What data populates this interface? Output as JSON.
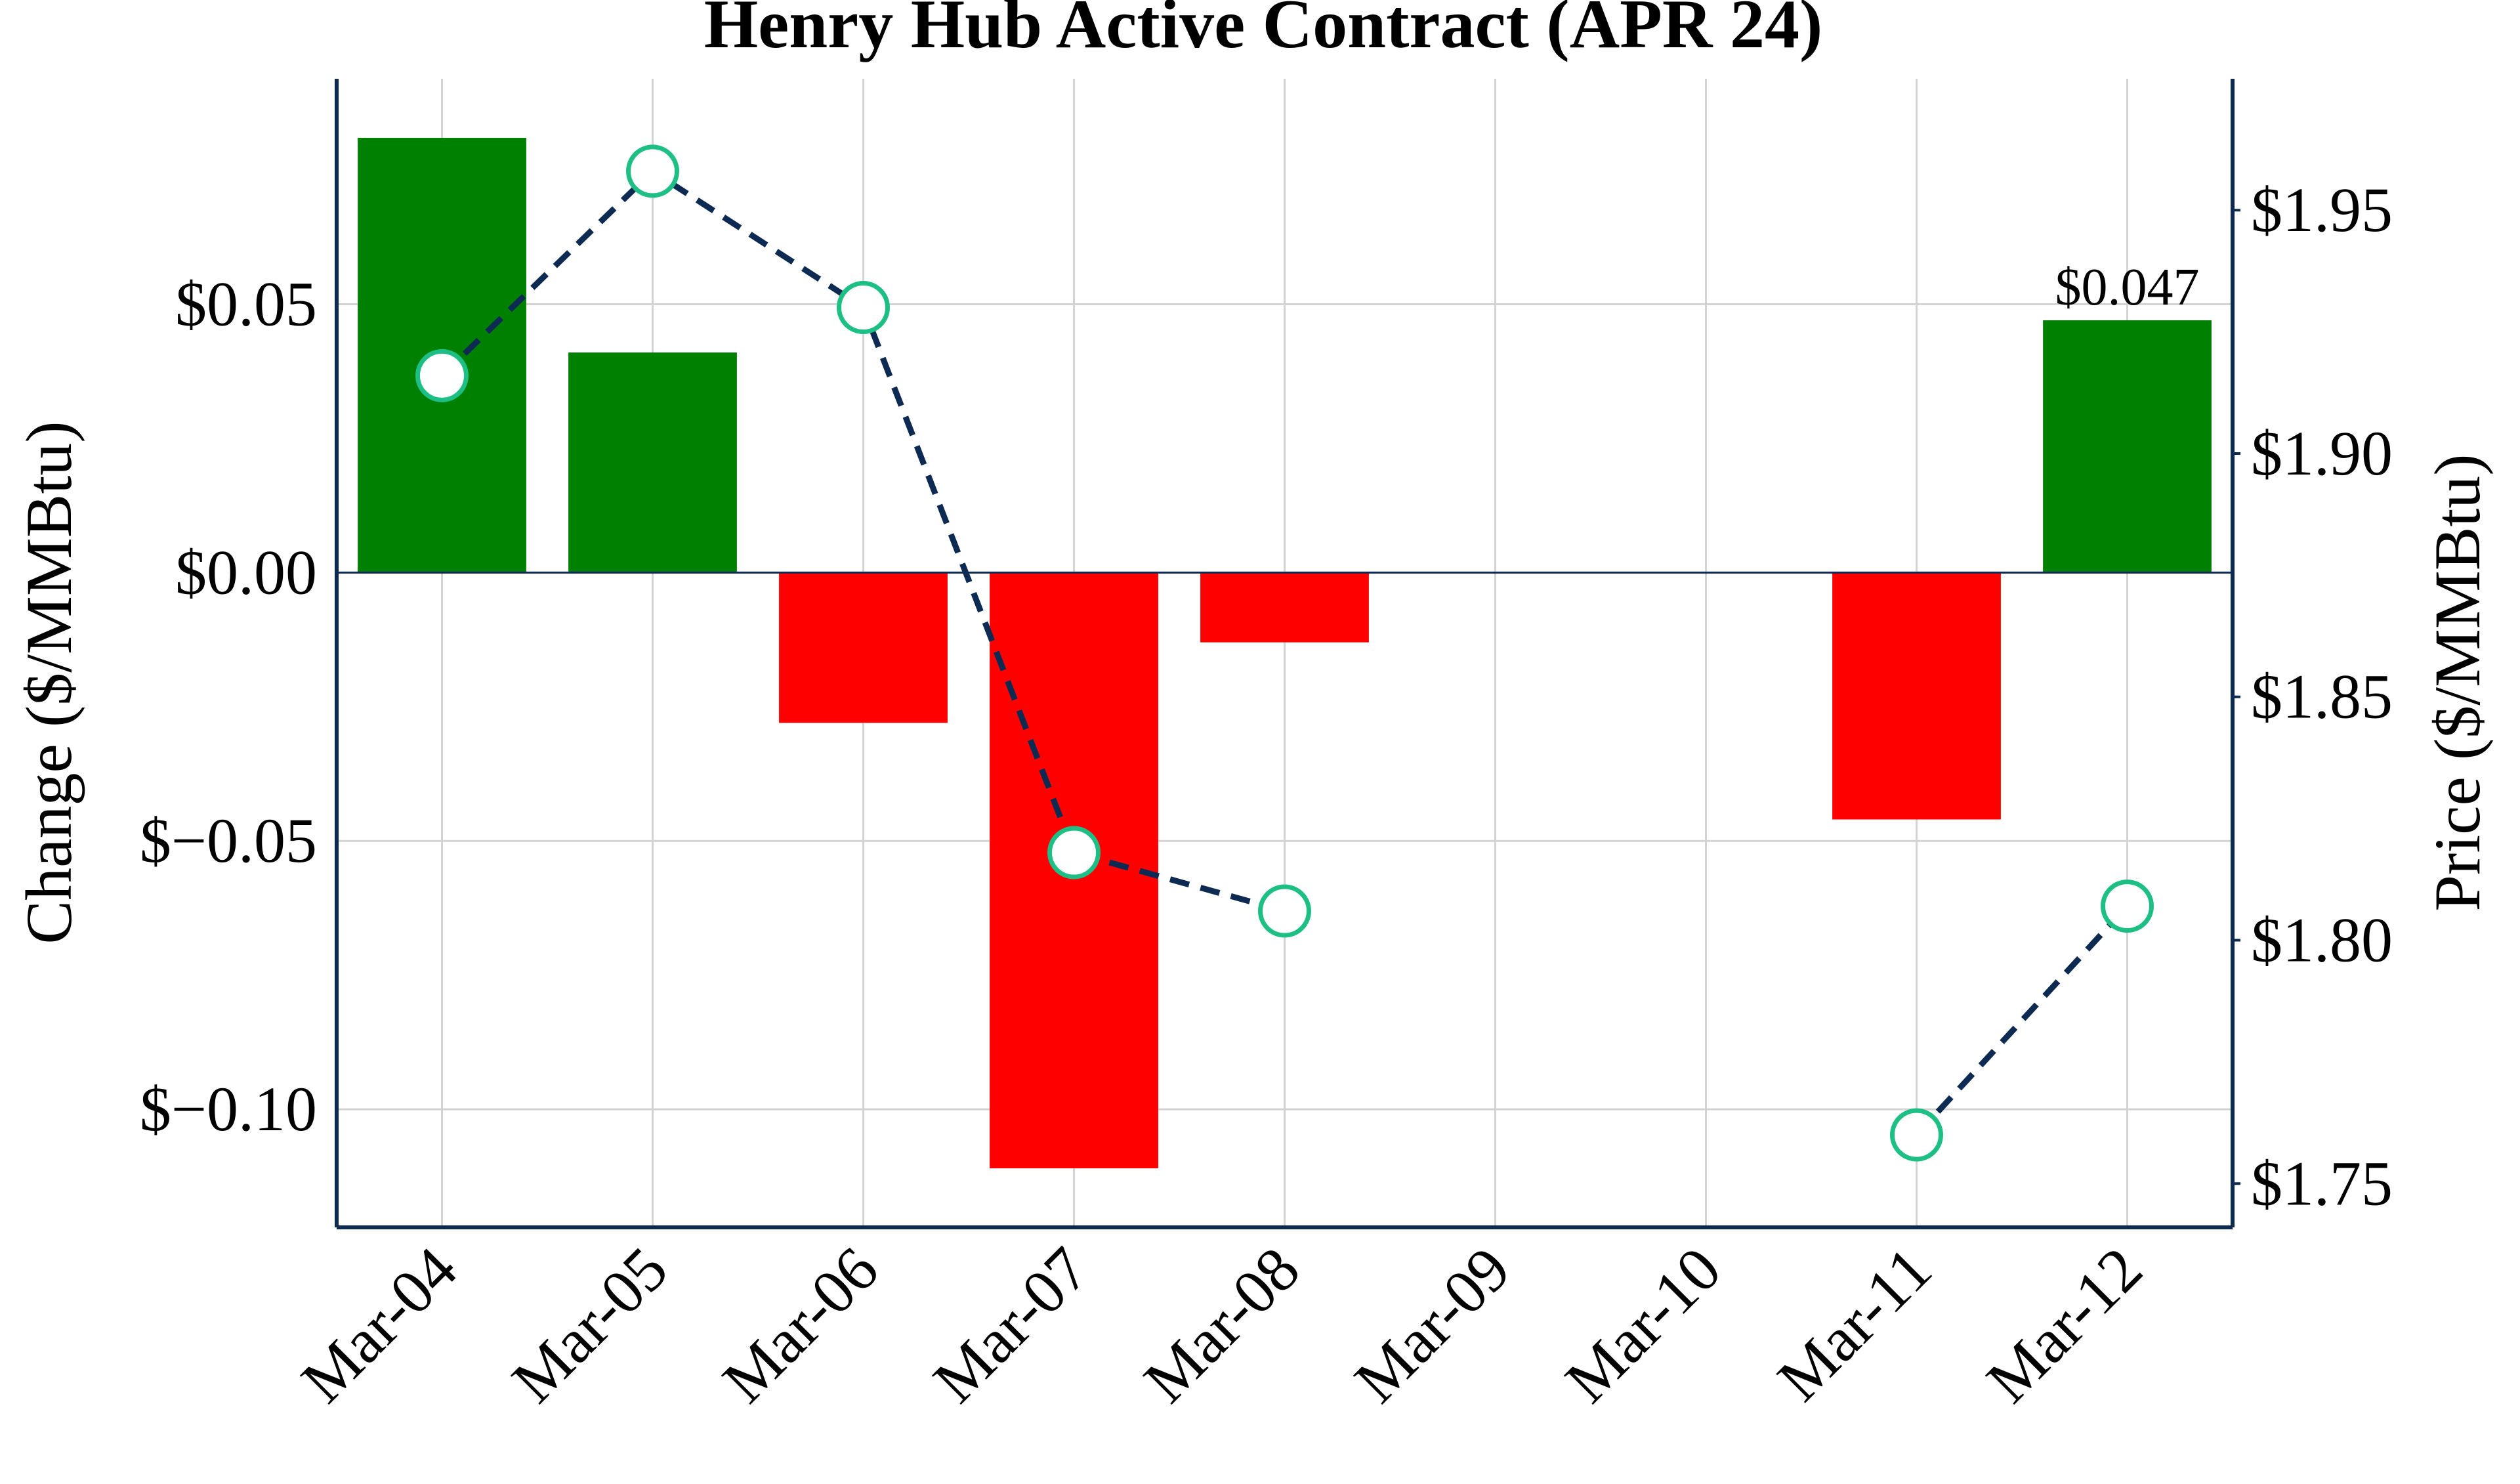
{
  "chart_data": {
    "type": "bar",
    "title": "Henry Hub Active Contract (APR 24)",
    "categories": [
      "Mar-04",
      "Mar-05",
      "Mar-06",
      "Mar-07",
      "Mar-08",
      "Mar-09",
      "Mar-10",
      "Mar-11",
      "Mar-12"
    ],
    "ylabel": "Change ($/MMBtu)",
    "y2label": "Price ($/MMBtu)",
    "ylim": [
      -0.122,
      0.092
    ],
    "y2lim": [
      1.741,
      1.977
    ],
    "yticks": [
      0.05,
      0.0,
      -0.05,
      -0.1
    ],
    "ytick_labels": [
      "$0.05",
      "$0.00",
      "$−0.05",
      "$−0.10"
    ],
    "y2ticks": [
      1.95,
      1.9,
      1.85,
      1.8,
      1.75
    ],
    "y2tick_labels": [
      "$1.95",
      "$1.90",
      "$1.85",
      "$1.80",
      "$1.75"
    ],
    "grid": true,
    "series": [
      {
        "kind": "bar",
        "axis": "left",
        "values": [
          0.081,
          0.041,
          -0.028,
          -0.111,
          -0.013,
          null,
          null,
          -0.046,
          0.047
        ]
      },
      {
        "kind": "line",
        "axis": "right",
        "style": "dashed",
        "marker": "circle",
        "values": [
          1.916,
          1.958,
          1.93,
          1.818,
          1.806,
          null,
          null,
          1.76,
          1.807
        ]
      }
    ],
    "annotations": [
      {
        "category": "Mar-12",
        "text": "$0.047"
      }
    ],
    "colors": {
      "positive": "#008000",
      "negative": "#ff0000",
      "line": "#0d2b52",
      "marker_edge": "#1dbf85",
      "axis": "#0d2b52",
      "grid": "#d3d3d3",
      "zero_line": "#0d2b52"
    }
  }
}
